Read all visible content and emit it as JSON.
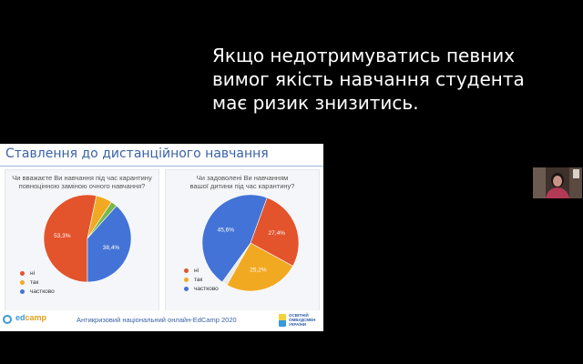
{
  "caption": {
    "lines": [
      "Якщо недотримуватись певних",
      "вимог якість навчання студента",
      "має ризик знизитись."
    ]
  },
  "slide": {
    "title": "Ставлення до дистанційного навчання",
    "footer": "Антикризовий національний онлайн-EdCamp 2020",
    "logo_left": {
      "prefix": "ed",
      "suffix": "camp"
    },
    "logo_right": [
      "ОСВІТНІЙ",
      "ОМБУДСМЕН",
      "УКРАЇНИ"
    ]
  },
  "colors": {
    "no": "#e3532c",
    "yes": "#f2a922",
    "partly": "#4373d6",
    "other": "#77b84a"
  },
  "chart_data": [
    {
      "type": "pie",
      "title": "Чи вважаєте Ви навчання під час карантину повноцінною заміною очного навчання?",
      "title_lines": [
        "Чи вважаєте Ви навчання під час карантину",
        "повноцінною заміною очного навчання?"
      ],
      "slices": [
        {
          "name": "ні",
          "value": 53.3,
          "label": "53,3%"
        },
        {
          "name": "так",
          "value": 6.0,
          "label": ""
        },
        {
          "name": "",
          "value": 2.3,
          "label": ""
        },
        {
          "name": "частково",
          "value": 38.4,
          "label": "38,4%"
        }
      ],
      "legend": [
        "ні",
        "так",
        "частково"
      ],
      "legend_position": "bottom-left"
    },
    {
      "type": "pie",
      "title": "Чи задоволені Ви навчанням вашої дитини під час карантину?",
      "title_lines": [
        "Чи задоволені Ви навчанням",
        "вашої дитини під час карантину?"
      ],
      "slices": [
        {
          "name": "ні",
          "value": 27.4,
          "label": "27,4%"
        },
        {
          "name": "так",
          "value": 25.2,
          "label": "25,2%"
        },
        {
          "name": "",
          "value": 1.8,
          "label": ""
        },
        {
          "name": "частково",
          "value": 45.6,
          "label": "45,6%"
        }
      ],
      "legend": [
        "ні",
        "так",
        "частково"
      ],
      "legend_position": "bottom-left"
    }
  ]
}
